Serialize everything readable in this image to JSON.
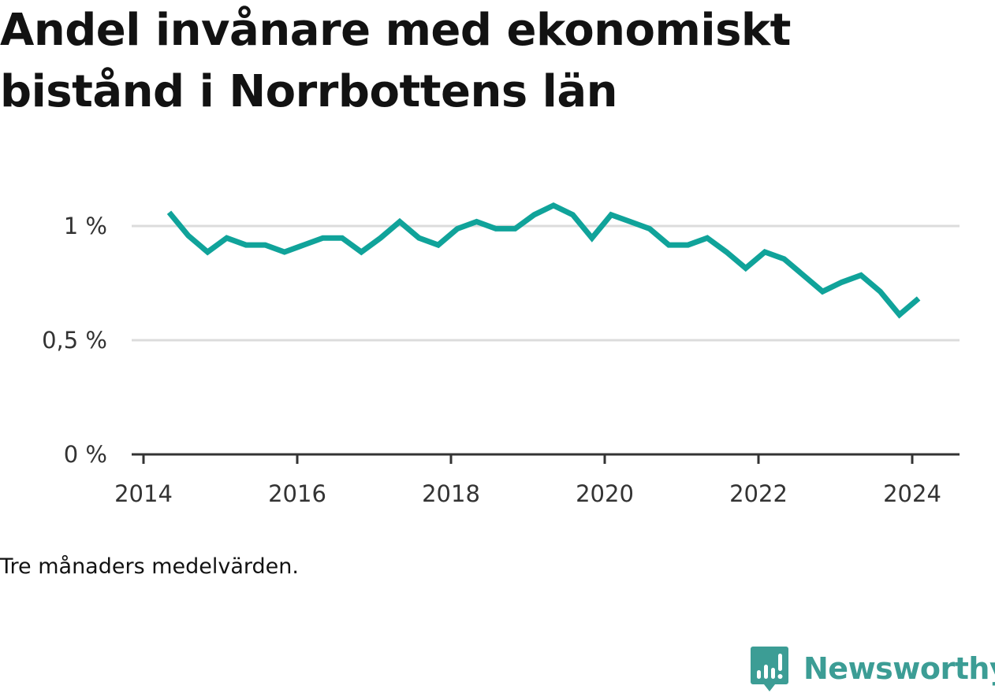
{
  "title": "Andel invånare med ekonomiskt bistånd i Norrbottens län",
  "note": "Tre månaders medelvärden.",
  "brand": {
    "name": "Newsworthy",
    "icon": "newsworthy-chart-bubble-icon",
    "color": "#3c9d95"
  },
  "chart_data": {
    "type": "line",
    "title": "Andel invånare med ekonomiskt bistånd i Norrbottens län",
    "xlabel": "",
    "ylabel": "",
    "line_color": "#10a39a",
    "grid": true,
    "xlim": [
      "2014-01",
      "2024-12"
    ],
    "ylim": [
      0,
      1.1
    ],
    "x_ticks": [
      {
        "value": "2014-01",
        "label": "2014"
      },
      {
        "value": "2016-01",
        "label": "2016"
      },
      {
        "value": "2018-01",
        "label": "2018"
      },
      {
        "value": "2020-01",
        "label": "2020"
      },
      {
        "value": "2022-01",
        "label": "2022"
      },
      {
        "value": "2024-01",
        "label": "2024"
      }
    ],
    "y_ticks": [
      {
        "value": 0,
        "label": "0 %"
      },
      {
        "value": 0.5,
        "label": "0,5 %"
      },
      {
        "value": 1,
        "label": "1 %"
      }
    ],
    "series": [
      {
        "x": [
          "2014-05",
          "2014-08",
          "2014-11",
          "2015-02",
          "2015-05",
          "2015-08",
          "2015-11",
          "2016-02",
          "2016-05",
          "2016-08",
          "2016-11",
          "2017-02",
          "2017-05",
          "2017-08",
          "2017-11",
          "2018-02",
          "2018-05",
          "2018-08",
          "2018-11",
          "2019-02",
          "2019-05",
          "2019-08",
          "2019-11",
          "2020-02",
          "2020-05",
          "2020-08",
          "2020-11",
          "2021-02",
          "2021-05",
          "2021-08",
          "2021-11",
          "2022-02",
          "2022-05",
          "2022-08",
          "2022-11",
          "2023-02",
          "2023-05",
          "2023-08",
          "2023-11",
          "2024-02"
        ],
        "values": [
          1.04,
          0.94,
          0.87,
          0.93,
          0.9,
          0.9,
          0.87,
          0.9,
          0.93,
          0.93,
          0.87,
          0.93,
          1.0,
          0.93,
          0.9,
          0.97,
          1.0,
          0.97,
          0.97,
          1.03,
          1.07,
          1.03,
          0.93,
          1.03,
          1.0,
          0.97,
          0.9,
          0.9,
          0.93,
          0.87,
          0.8,
          0.87,
          0.84,
          0.77,
          0.7,
          0.74,
          0.77,
          0.7,
          0.6,
          0.67
        ]
      }
    ]
  }
}
